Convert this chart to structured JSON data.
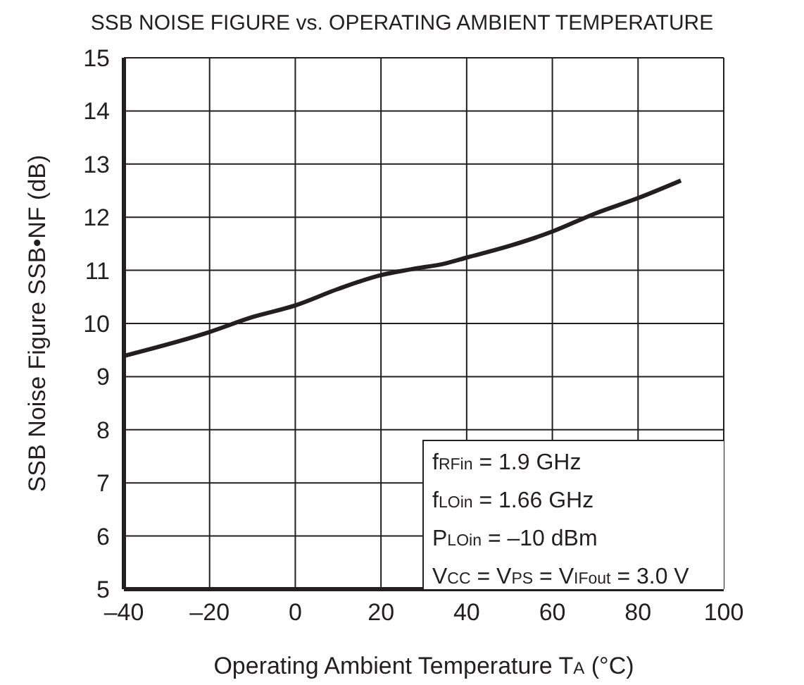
{
  "chart_data": {
    "type": "line",
    "title": "SSB NOISE FIGURE vs. OPERATING AMBIENT TEMPERATURE",
    "xlabel": "Operating Ambient Temperature  T$_{A}$ (°C)",
    "ylabel": "SSB Noise Figure  SSB•NF (dB)",
    "x": [
      -40,
      -20,
      -10,
      0,
      10,
      20,
      27,
      35,
      40,
      50,
      60,
      70,
      80,
      90
    ],
    "series": [
      {
        "color": "#231f20",
        "values": [
          9.39,
          9.84,
          10.12,
          10.34,
          10.65,
          10.91,
          11.02,
          11.13,
          11.24,
          11.46,
          11.73,
          12.07,
          12.36,
          12.69
        ]
      }
    ],
    "xlim": [
      -40,
      100
    ],
    "xticks": [
      {
        "value": -40,
        "label": "–40"
      },
      {
        "value": -20,
        "label": "–20"
      },
      0,
      20,
      40,
      60,
      80,
      100
    ],
    "ylim": [
      5,
      15
    ],
    "yticks": [
      5,
      6,
      7,
      8,
      9,
      10,
      11,
      12,
      13,
      14,
      15
    ],
    "grid": true,
    "marker": "none",
    "line_style": "solid",
    "annotations": [
      "f$_{RFin}$ = 1.9 GHz",
      "f$_{LOin}$ = 1.66 GHz",
      "P$_{LOin}$ = –10 dBm",
      "V$_{CC}$ = V$_{PS}$ = V$_{IFout}$ = 3.0 V"
    ]
  }
}
